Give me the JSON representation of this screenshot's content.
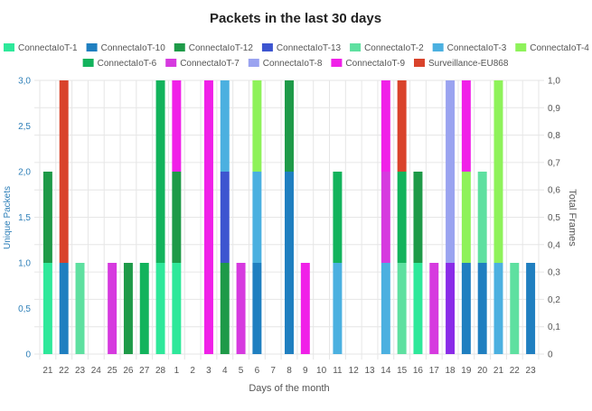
{
  "chart_data": {
    "type": "bar",
    "stacked": true,
    "title": "Packets in the last 30 days",
    "xlabel": "Days of the month",
    "ylabel": "Unique Packets",
    "y2label": "Total Frames",
    "ylim": [
      0,
      3
    ],
    "y2lim": [
      0,
      1
    ],
    "yticks": [
      "0",
      "0,5",
      "1,0",
      "1,5",
      "2,0",
      "2,5",
      "3,0"
    ],
    "y2ticks": [
      "0",
      "0,1",
      "0,2",
      "0,3",
      "0,4",
      "0,5",
      "0,6",
      "0,7",
      "0,8",
      "0,9",
      "1,0"
    ],
    "grid": true,
    "legend_position": "top",
    "categories": [
      "21",
      "22",
      "23",
      "24",
      "25",
      "26",
      "27",
      "28",
      "1",
      "2",
      "3",
      "4",
      "5",
      "6",
      "7",
      "8",
      "9",
      "10",
      "11",
      "12",
      "13",
      "14",
      "15",
      "16",
      "17",
      "18",
      "19",
      "20",
      "21",
      "22",
      "23"
    ],
    "series": [
      {
        "name": "ConnectaIoT-1",
        "color": "#2ee89a",
        "values": [
          1,
          0,
          0,
          0,
          0,
          0,
          0,
          1,
          1,
          0,
          0,
          0,
          0,
          0,
          0,
          0,
          0,
          0,
          0,
          0,
          0,
          0,
          0,
          1,
          0,
          0,
          0,
          0,
          0,
          0,
          0
        ]
      },
      {
        "name": "ConnectaIoT-10",
        "color": "#1f7fc0",
        "values": [
          0,
          1,
          0,
          0,
          0,
          0,
          0,
          0,
          0,
          0,
          0,
          0,
          0,
          1,
          0,
          2,
          0,
          0,
          0,
          0,
          0,
          0,
          0,
          0,
          0,
          0,
          1,
          1,
          0,
          0,
          1
        ]
      },
      {
        "name": "ConnectaIoT-12",
        "color": "#1e9a48",
        "values": [
          1,
          0,
          0,
          0,
          0,
          1,
          0,
          0,
          1,
          0,
          0,
          1,
          0,
          0,
          0,
          1,
          0,
          0,
          0,
          0,
          0,
          0,
          0,
          1,
          0,
          0,
          0,
          0,
          0,
          0,
          0
        ]
      },
      {
        "name": "ConnectaIoT-13",
        "color": "#3d55d0",
        "values": [
          0,
          0,
          0,
          0,
          0,
          0,
          0,
          0,
          0,
          0,
          0,
          1,
          0,
          0,
          0,
          0,
          0,
          0,
          0,
          0,
          0,
          0,
          0,
          0,
          0,
          0,
          0,
          0,
          0,
          0,
          0
        ]
      },
      {
        "name": "ConnectaIoT-2",
        "color": "#5ee0a0",
        "values": [
          0,
          0,
          1,
          0,
          0,
          0,
          0,
          0,
          0,
          0,
          0,
          0,
          0,
          0,
          0,
          0,
          0,
          0,
          0,
          0,
          0,
          0,
          1,
          0,
          0,
          0,
          0,
          1,
          0,
          1,
          0
        ]
      },
      {
        "name": "ConnectaIoT-3",
        "color": "#4bb0e0",
        "values": [
          0,
          0,
          0,
          0,
          0,
          0,
          0,
          0,
          0,
          0,
          0,
          1,
          0,
          1,
          0,
          0,
          0,
          0,
          1,
          0,
          0,
          1,
          0,
          0,
          0,
          0,
          0,
          0,
          1,
          0,
          0
        ]
      },
      {
        "name": "ConnectaIoT-4",
        "color": "#8ef25a",
        "values": [
          0,
          0,
          0,
          0,
          0,
          0,
          0,
          0,
          0,
          0,
          0,
          0,
          0,
          1,
          0,
          0,
          0,
          0,
          0,
          0,
          0,
          0,
          0,
          0,
          0,
          0,
          1,
          0,
          2,
          0,
          0
        ]
      },
      {
        "name": "ConnectaIoT-5",
        "color": "#8a2be8",
        "values": [
          0,
          0,
          0,
          0,
          0,
          0,
          0,
          0,
          0,
          0,
          0,
          0,
          0,
          0,
          0,
          0,
          0,
          0,
          0,
          0,
          0,
          0,
          0,
          0,
          0,
          1,
          0,
          0,
          0,
          0,
          0
        ]
      },
      {
        "name": "ConnectaIoT-6",
        "color": "#12b35c",
        "values": [
          0,
          0,
          0,
          0,
          0,
          0,
          1,
          2,
          0,
          0,
          0,
          0,
          0,
          0,
          0,
          0,
          0,
          0,
          1,
          0,
          0,
          0,
          1,
          0,
          0,
          0,
          0,
          0,
          0,
          0,
          0
        ]
      },
      {
        "name": "ConnectaIoT-7",
        "color": "#d63adf",
        "values": [
          0,
          0,
          0,
          0,
          1,
          0,
          0,
          0,
          0,
          0,
          0,
          0,
          1,
          0,
          0,
          0,
          0,
          0,
          0,
          0,
          0,
          1,
          0,
          0,
          1,
          0,
          0,
          0,
          0,
          0,
          0
        ]
      },
      {
        "name": "ConnectaIoT-8",
        "color": "#9aa3f0",
        "values": [
          0,
          0,
          0,
          0,
          0,
          0,
          0,
          0,
          0,
          0,
          0,
          0,
          0,
          0,
          0,
          0,
          0,
          0,
          0,
          0,
          0,
          0,
          0,
          0,
          0,
          2,
          0,
          0,
          0,
          0,
          0
        ]
      },
      {
        "name": "ConnectaIoT-9",
        "color": "#f020e8",
        "values": [
          0,
          0,
          0,
          0,
          0,
          0,
          0,
          0,
          1,
          0,
          3,
          0,
          0,
          0,
          0,
          0,
          1,
          0,
          0,
          0,
          0,
          1,
          0,
          0,
          0,
          0,
          1,
          0,
          0,
          0,
          0
        ]
      },
      {
        "name": "Surveillance-EU868",
        "color": "#d9432b",
        "values": [
          0,
          2,
          0,
          0,
          0,
          0,
          0,
          0,
          0,
          0,
          0,
          0,
          0,
          0,
          0,
          0,
          0,
          0,
          0,
          0,
          0,
          0,
          1,
          0,
          0,
          0,
          0,
          0,
          0,
          0,
          0
        ]
      }
    ]
  }
}
